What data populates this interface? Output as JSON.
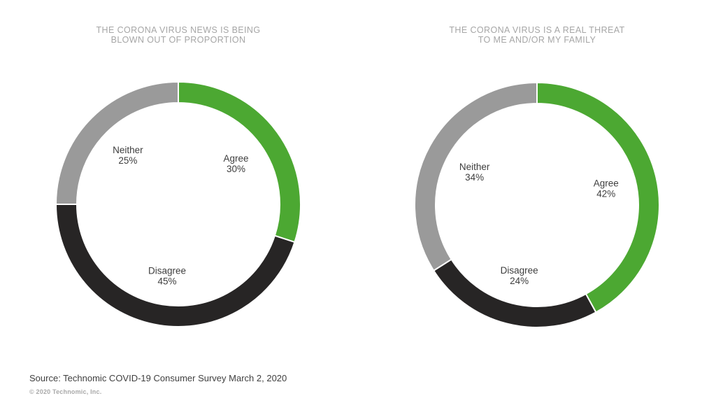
{
  "page": {
    "background": "#FFFFFF"
  },
  "chart_data": [
    {
      "type": "pie",
      "subtype": "donut",
      "title": "THE CORONA VIRUS NEWS IS BEING BLOWN OUT OF PROPORTION",
      "title_lines": [
        "THE CORONA VIRUS NEWS IS BEING",
        "BLOWN OUT OF PROPORTION"
      ],
      "categories": [
        "Agree",
        "Disagree",
        "Neither"
      ],
      "values": [
        30,
        45,
        25
      ],
      "unit": "%",
      "colors": [
        "#4CA832",
        "#272525",
        "#9A9A9A"
      ],
      "start_angle_deg": 0,
      "direction": "clockwise",
      "legend_position": "none",
      "labels_inside": true,
      "label_format": "{category} {value}%"
    },
    {
      "type": "pie",
      "subtype": "donut",
      "title": "THE CORONA VIRUS IS A REAL THREAT TO ME AND/OR MY FAMILY",
      "title_lines": [
        "THE CORONA VIRUS IS A REAL THREAT",
        "TO ME AND/OR MY FAMILY"
      ],
      "categories": [
        "Agree",
        "Disagree",
        "Neither"
      ],
      "values": [
        42,
        24,
        34
      ],
      "unit": "%",
      "colors": [
        "#4CA832",
        "#272525",
        "#9A9A9A"
      ],
      "start_angle_deg": 0,
      "direction": "clockwise",
      "legend_position": "none",
      "labels_inside": true,
      "label_format": "{category} {value}%"
    }
  ],
  "footer": {
    "source": "Source: Technomic COVID-19 Consumer Survey March 2, 2020",
    "copyright": "© 2020 Technomic, Inc."
  },
  "theme": {
    "title_color": "#A6A6A6",
    "label_color": "#3D3D3D",
    "source_color": "#3F3F3F",
    "copyright_color": "#A9A9A9",
    "separator_color": "#FFFFFF"
  }
}
